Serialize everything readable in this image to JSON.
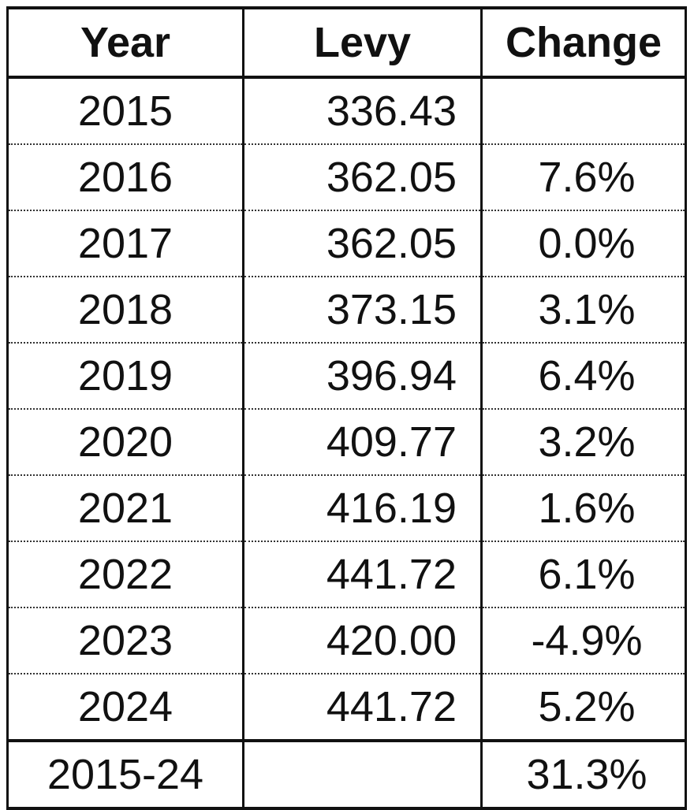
{
  "table": {
    "headers": {
      "year": "Year",
      "levy": "Levy",
      "change": "Change"
    },
    "rows": [
      {
        "year": "2015",
        "levy": "336.43",
        "change": ""
      },
      {
        "year": "2016",
        "levy": "362.05",
        "change": "7.6%"
      },
      {
        "year": "2017",
        "levy": "362.05",
        "change": "0.0%"
      },
      {
        "year": "2018",
        "levy": "373.15",
        "change": "3.1%"
      },
      {
        "year": "2019",
        "levy": "396.94",
        "change": "6.4%"
      },
      {
        "year": "2020",
        "levy": "409.77",
        "change": "3.2%"
      },
      {
        "year": "2021",
        "levy": "416.19",
        "change": "1.6%"
      },
      {
        "year": "2022",
        "levy": "441.72",
        "change": "6.1%"
      },
      {
        "year": "2023",
        "levy": "420.00",
        "change": "-4.9%"
      },
      {
        "year": "2024",
        "levy": "441.72",
        "change": "5.2%"
      }
    ],
    "total": {
      "year": "2015-24",
      "levy": "",
      "change": "31.3%"
    }
  }
}
